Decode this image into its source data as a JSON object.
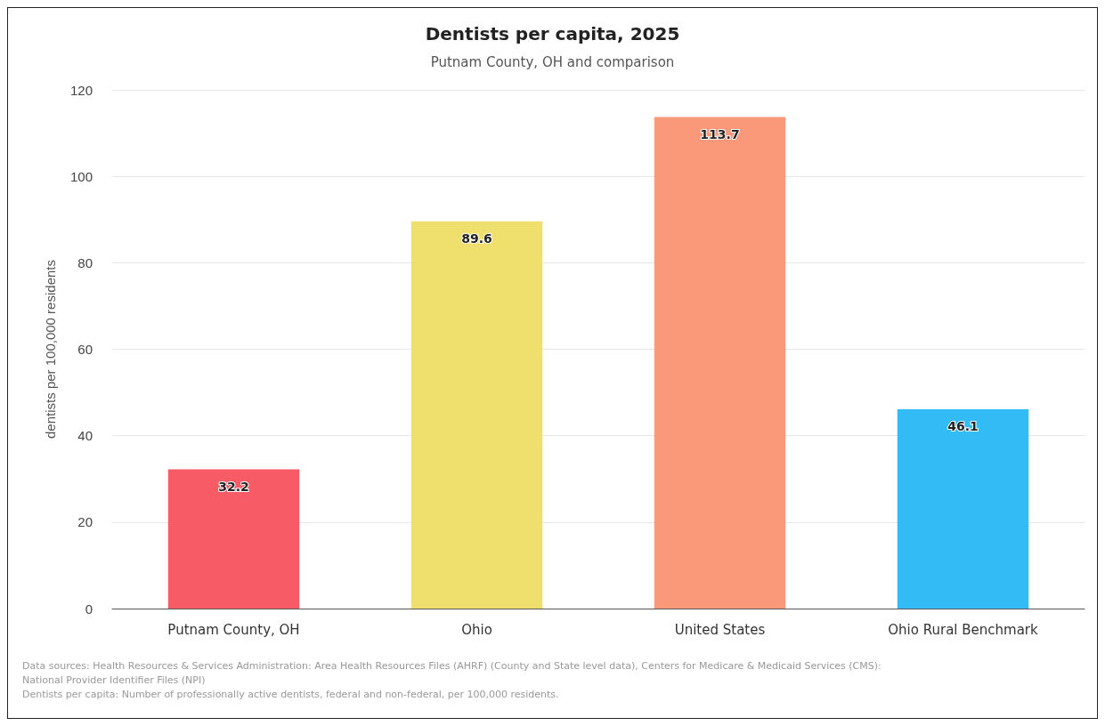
{
  "chart_data": {
    "type": "bar",
    "title": "Dentists per capita, 2025",
    "subtitle": "Putnam County, OH and comparison",
    "ylabel": "dentists per 100,000 residents",
    "categories": [
      "Putnam County, OH",
      "Ohio",
      "United States",
      "Ohio Rural Benchmark"
    ],
    "values": [
      32.2,
      89.6,
      113.7,
      46.1
    ],
    "colors": [
      "#f75c66",
      "#efe06e",
      "#f9997a",
      "#33bbf5"
    ],
    "ylim": [
      0,
      120
    ],
    "yticks": [
      0,
      20,
      40,
      60,
      80,
      100,
      120
    ],
    "grid": "y",
    "data_labels": true,
    "annotations": [
      "Data sources: Health Resources & Services Administration: Area Health Resources Files (AHRF) (County and State level data), Centers for Medicare & Medicaid Services (CMS): National Provider Identifier Files (NPI)",
      "Dentists per capita: Number of professionally active dentists, federal and non-federal, per 100,000 residents."
    ]
  }
}
